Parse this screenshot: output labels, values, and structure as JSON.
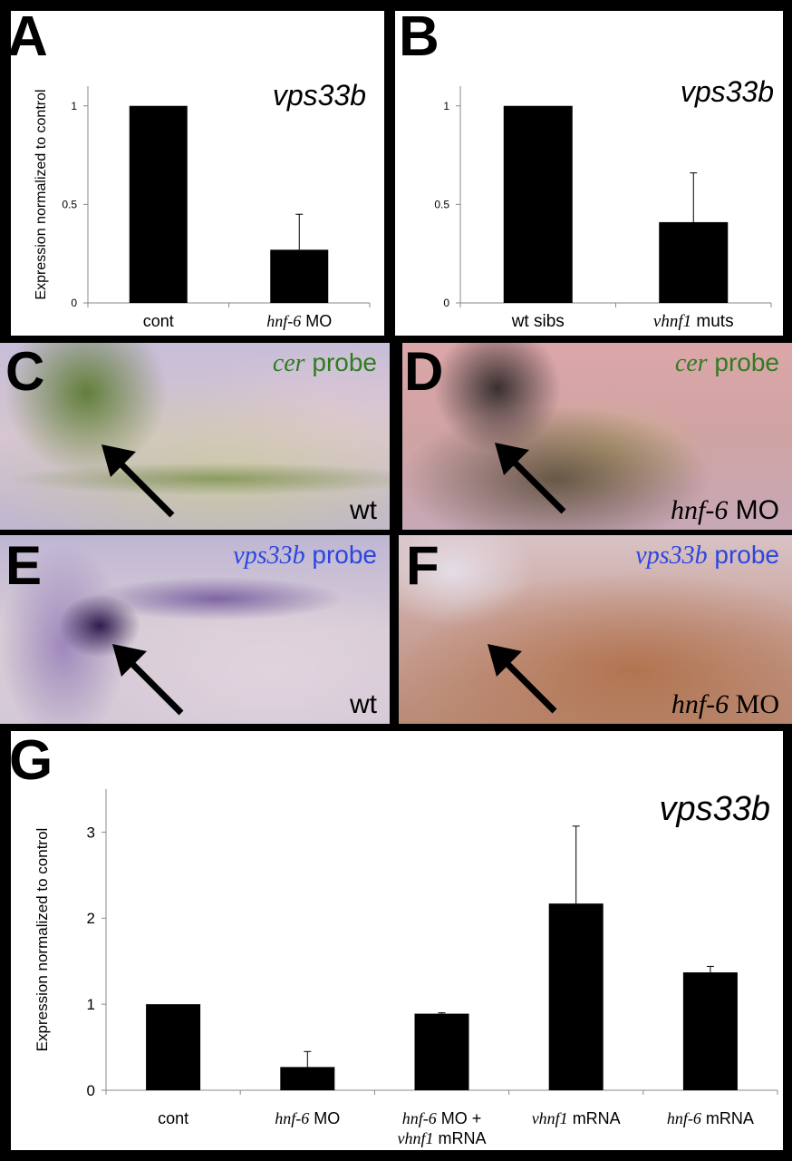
{
  "figure": {
    "panels": {
      "A": {
        "label": "A"
      },
      "B": {
        "label": "B"
      },
      "C": {
        "label": "C",
        "probe_gene": "cer",
        "probe_word": "probe",
        "probe_color": "#2e7d1f",
        "condition": "wt"
      },
      "D": {
        "label": "D",
        "probe_gene": "cer",
        "probe_word": "probe",
        "probe_color": "#2e7d1f",
        "condition_gene": "hnf-6",
        "condition_suffix": " MO"
      },
      "E": {
        "label": "E",
        "probe_gene": "vps33b",
        "probe_word": "probe",
        "probe_color": "#2b46e0",
        "condition": "wt"
      },
      "F": {
        "label": "F",
        "probe_gene": "vps33b",
        "probe_word": "probe",
        "probe_color": "#2b46e0",
        "condition_gene": "hnf-6",
        "condition_suffix": " MO"
      },
      "G": {
        "label": "G"
      }
    }
  },
  "chart_data": [
    {
      "panel": "A",
      "type": "bar",
      "title": "vps33b",
      "ylabel": "Expression normalized to control",
      "ylim": [
        0,
        1.1
      ],
      "yticks": [
        "0",
        "0.5",
        "1"
      ],
      "ytick_values": [
        0,
        0.5,
        1
      ],
      "categories": [
        {
          "gene": "",
          "text": "cont"
        },
        {
          "gene": "hnf-6",
          "text": " MO"
        }
      ],
      "values": [
        1.0,
        0.27
      ],
      "errors": [
        0.0,
        0.18
      ],
      "bar_color": "#000000"
    },
    {
      "panel": "B",
      "type": "bar",
      "title": "vps33b",
      "ylabel": "",
      "ylim": [
        0,
        1.1
      ],
      "yticks": [
        "0",
        "0.5",
        "1"
      ],
      "ytick_values": [
        0,
        0.5,
        1
      ],
      "categories": [
        {
          "gene": "",
          "text": "wt sibs"
        },
        {
          "gene": "vhnf1",
          "text": " muts"
        }
      ],
      "values": [
        1.0,
        0.41
      ],
      "errors": [
        0.0,
        0.25
      ],
      "bar_color": "#000000"
    },
    {
      "panel": "G",
      "type": "bar",
      "title": "vps33b",
      "ylabel": "Expression normalized to control",
      "ylim": [
        0,
        3.5
      ],
      "yticks": [
        "0",
        "1",
        "2",
        "3"
      ],
      "ytick_values": [
        0,
        1,
        2,
        3
      ],
      "categories": [
        {
          "lines": [
            [
              {
                "it": false,
                "t": "cont"
              }
            ]
          ]
        },
        {
          "lines": [
            [
              {
                "it": true,
                "t": "hnf-6"
              },
              {
                "it": false,
                "t": " MO"
              }
            ]
          ]
        },
        {
          "lines": [
            [
              {
                "it": true,
                "t": "hnf-6"
              },
              {
                "it": false,
                "t": " MO +"
              }
            ],
            [
              {
                "it": true,
                "t": "vhnf1"
              },
              {
                "it": false,
                "t": " mRNA"
              }
            ]
          ]
        },
        {
          "lines": [
            [
              {
                "it": true,
                "t": "vhnf1"
              },
              {
                "it": false,
                "t": " mRNA"
              }
            ]
          ]
        },
        {
          "lines": [
            [
              {
                "it": true,
                "t": "hnf-6"
              },
              {
                "it": false,
                "t": " mRNA"
              }
            ]
          ]
        }
      ],
      "values": [
        1.0,
        0.27,
        0.89,
        2.17,
        1.37
      ],
      "errors": [
        0.0,
        0.18,
        0.01,
        0.9,
        0.07
      ],
      "bar_color": "#000000"
    }
  ]
}
